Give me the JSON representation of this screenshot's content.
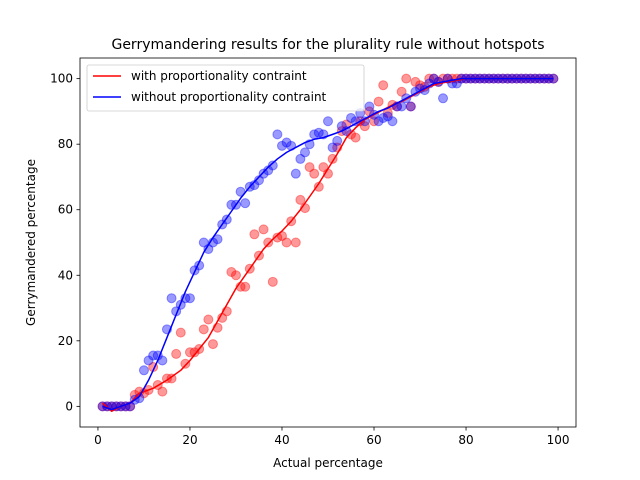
{
  "chart_data": {
    "type": "scatter",
    "title": "Gerrymandering results for the plurality rule without hotspots",
    "xlabel": "Actual percentage",
    "ylabel": "Gerrymandered percentage",
    "xlim": [
      -3.9,
      103.9
    ],
    "ylim": [
      -6.3,
      106.3
    ],
    "xticks": [
      0,
      20,
      40,
      60,
      80,
      100
    ],
    "yticks": [
      0,
      20,
      40,
      60,
      80,
      100
    ],
    "grid": false,
    "legend_position": "top-left",
    "series": [
      {
        "name": "with proportionality contraint",
        "color": "#ff0000",
        "points": [
          [
            1,
            0
          ],
          [
            2,
            0
          ],
          [
            3,
            0
          ],
          [
            4,
            0
          ],
          [
            5,
            0
          ],
          [
            6,
            0
          ],
          [
            7,
            0
          ],
          [
            8,
            3.5
          ],
          [
            9,
            4.5
          ],
          [
            10,
            4
          ],
          [
            11,
            5
          ],
          [
            12,
            12
          ],
          [
            13,
            6.5
          ],
          [
            14,
            4.5
          ],
          [
            15,
            8.5
          ],
          [
            16,
            8.5
          ],
          [
            17,
            16
          ],
          [
            18,
            22.5
          ],
          [
            19,
            13
          ],
          [
            20,
            16.5
          ],
          [
            21,
            16.5
          ],
          [
            22,
            17.5
          ],
          [
            23,
            23.5
          ],
          [
            24,
            26.5
          ],
          [
            25,
            19
          ],
          [
            26,
            24
          ],
          [
            27,
            27
          ],
          [
            28,
            29
          ],
          [
            29,
            41
          ],
          [
            30,
            40
          ],
          [
            31,
            36.5
          ],
          [
            32,
            36.5
          ],
          [
            33,
            42
          ],
          [
            34,
            52.5
          ],
          [
            35,
            46
          ],
          [
            36,
            54
          ],
          [
            37,
            50
          ],
          [
            38,
            38
          ],
          [
            39,
            51.5
          ],
          [
            40,
            52
          ],
          [
            41,
            50
          ],
          [
            42,
            56.5
          ],
          [
            43,
            50
          ],
          [
            44,
            63
          ],
          [
            45,
            60.5
          ],
          [
            46,
            73
          ],
          [
            47,
            71
          ],
          [
            48,
            67
          ],
          [
            49,
            73
          ],
          [
            50,
            71
          ],
          [
            51,
            75.5
          ],
          [
            52,
            79
          ],
          [
            53,
            84
          ],
          [
            54,
            86
          ],
          [
            55,
            83
          ],
          [
            56,
            82
          ],
          [
            57,
            87
          ],
          [
            58,
            85.5
          ],
          [
            59,
            90
          ],
          [
            60,
            87
          ],
          [
            61,
            93
          ],
          [
            62,
            98
          ],
          [
            63,
            89.5
          ],
          [
            64,
            92
          ],
          [
            65,
            91.5
          ],
          [
            66,
            96
          ],
          [
            67,
            100
          ],
          [
            68,
            91.5
          ],
          [
            69,
            99
          ],
          [
            70,
            98
          ],
          [
            71,
            97.5
          ],
          [
            72,
            100
          ],
          [
            73,
            100
          ],
          [
            74,
            99
          ],
          [
            75,
            100
          ],
          [
            76,
            100
          ],
          [
            77,
            100
          ],
          [
            78,
            100
          ],
          [
            79,
            100
          ],
          [
            80,
            100
          ],
          [
            81,
            100
          ],
          [
            82,
            100
          ],
          [
            83,
            100
          ],
          [
            84,
            100
          ],
          [
            85,
            100
          ],
          [
            86,
            100
          ],
          [
            87,
            100
          ],
          [
            88,
            100
          ],
          [
            89,
            100
          ],
          [
            90,
            100
          ],
          [
            91,
            100
          ],
          [
            92,
            100
          ],
          [
            93,
            100
          ],
          [
            94,
            100
          ],
          [
            95,
            100
          ],
          [
            96,
            100
          ],
          [
            97,
            100
          ],
          [
            98,
            100
          ],
          [
            99,
            100
          ]
        ],
        "fit": [
          [
            1,
            1
          ],
          [
            3,
            -1.5
          ],
          [
            5,
            0
          ],
          [
            7,
            1
          ],
          [
            9,
            4
          ],
          [
            12,
            5.5
          ],
          [
            15,
            8
          ],
          [
            18,
            11
          ],
          [
            20,
            14
          ],
          [
            22,
            17.5
          ],
          [
            24,
            21
          ],
          [
            26,
            26
          ],
          [
            28,
            31
          ],
          [
            30,
            36
          ],
          [
            32,
            40
          ],
          [
            34,
            44
          ],
          [
            36,
            48
          ],
          [
            38,
            51
          ],
          [
            40,
            53.5
          ],
          [
            42,
            56.5
          ],
          [
            44,
            60
          ],
          [
            46,
            64
          ],
          [
            48,
            68
          ],
          [
            50,
            72.5
          ],
          [
            52,
            77
          ],
          [
            54,
            82
          ],
          [
            56,
            85
          ],
          [
            58,
            87.5
          ],
          [
            60,
            89
          ],
          [
            62,
            90.5
          ],
          [
            64,
            92
          ],
          [
            66,
            93
          ],
          [
            68,
            94.5
          ],
          [
            70,
            96
          ],
          [
            72,
            97.5
          ],
          [
            74,
            98.5
          ],
          [
            76,
            99
          ],
          [
            78,
            99.5
          ],
          [
            80,
            100
          ],
          [
            90,
            100
          ],
          [
            99,
            100
          ]
        ]
      },
      {
        "name": "without proportionality contraint",
        "color": "#0000ff",
        "points": [
          [
            1,
            0
          ],
          [
            2,
            0
          ],
          [
            3,
            0
          ],
          [
            4,
            0
          ],
          [
            5,
            0
          ],
          [
            6,
            0
          ],
          [
            7,
            0
          ],
          [
            8,
            2
          ],
          [
            9,
            2.5
          ],
          [
            10,
            11
          ],
          [
            11,
            14
          ],
          [
            12,
            15.5
          ],
          [
            13,
            15.5
          ],
          [
            14,
            14
          ],
          [
            15,
            23.5
          ],
          [
            16,
            33
          ],
          [
            17,
            29
          ],
          [
            18,
            31
          ],
          [
            19,
            33
          ],
          [
            20,
            33
          ],
          [
            21,
            41.5
          ],
          [
            22,
            43
          ],
          [
            23,
            50
          ],
          [
            24,
            48
          ],
          [
            25,
            50
          ],
          [
            26,
            51
          ],
          [
            27,
            55.5
          ],
          [
            28,
            57
          ],
          [
            29,
            61.5
          ],
          [
            30,
            61.5
          ],
          [
            31,
            65.5
          ],
          [
            32,
            62
          ],
          [
            33,
            67
          ],
          [
            34,
            67.5
          ],
          [
            35,
            69
          ],
          [
            36,
            71
          ],
          [
            37,
            72
          ],
          [
            38,
            73.5
          ],
          [
            39,
            83
          ],
          [
            40,
            79.5
          ],
          [
            41,
            80.5
          ],
          [
            42,
            79.5
          ],
          [
            43,
            71
          ],
          [
            44,
            75.5
          ],
          [
            45,
            77.5
          ],
          [
            46,
            80
          ],
          [
            47,
            83
          ],
          [
            48,
            83.5
          ],
          [
            49,
            83
          ],
          [
            50,
            87
          ],
          [
            51,
            79
          ],
          [
            52,
            81
          ],
          [
            53,
            85.5
          ],
          [
            54,
            84
          ],
          [
            55,
            88
          ],
          [
            56,
            87
          ],
          [
            57,
            89.5
          ],
          [
            58,
            87
          ],
          [
            59,
            91.5
          ],
          [
            60,
            89
          ],
          [
            61,
            87
          ],
          [
            62,
            88
          ],
          [
            63,
            88.5
          ],
          [
            64,
            87
          ],
          [
            65,
            91.5
          ],
          [
            66,
            91.5
          ],
          [
            67,
            94
          ],
          [
            68,
            91.5
          ],
          [
            69,
            96
          ],
          [
            70,
            97
          ],
          [
            71,
            96.5
          ],
          [
            72,
            98.5
          ],
          [
            73,
            100
          ],
          [
            74,
            99
          ],
          [
            75,
            94
          ],
          [
            76,
            100
          ],
          [
            77,
            98.5
          ],
          [
            78,
            98.5
          ],
          [
            79,
            100
          ],
          [
            80,
            100
          ],
          [
            81,
            100
          ],
          [
            82,
            100
          ],
          [
            83,
            100
          ],
          [
            84,
            100
          ],
          [
            85,
            100
          ],
          [
            86,
            100
          ],
          [
            87,
            100
          ],
          [
            88,
            100
          ],
          [
            89,
            100
          ],
          [
            90,
            100
          ],
          [
            91,
            100
          ],
          [
            92,
            100
          ],
          [
            93,
            100
          ],
          [
            94,
            100
          ],
          [
            95,
            100
          ],
          [
            96,
            100
          ],
          [
            97,
            100
          ],
          [
            98,
            100
          ],
          [
            99,
            100
          ]
        ],
        "fit": [
          [
            1,
            0
          ],
          [
            3,
            -1
          ],
          [
            5,
            0
          ],
          [
            7,
            1
          ],
          [
            9,
            3
          ],
          [
            11,
            8
          ],
          [
            13,
            14
          ],
          [
            15,
            21
          ],
          [
            17,
            28
          ],
          [
            19,
            35
          ],
          [
            21,
            41
          ],
          [
            23,
            47
          ],
          [
            25,
            51.5
          ],
          [
            27,
            55.5
          ],
          [
            29,
            59.5
          ],
          [
            31,
            63.5
          ],
          [
            33,
            67
          ],
          [
            35,
            70
          ],
          [
            37,
            73
          ],
          [
            39,
            75.5
          ],
          [
            41,
            77.5
          ],
          [
            43,
            79
          ],
          [
            45,
            80.5
          ],
          [
            47,
            81.5
          ],
          [
            49,
            82
          ],
          [
            51,
            83
          ],
          [
            53,
            84
          ],
          [
            55,
            85.5
          ],
          [
            57,
            87
          ],
          [
            59,
            88.5
          ],
          [
            61,
            90
          ],
          [
            63,
            91
          ],
          [
            65,
            92.5
          ],
          [
            67,
            94
          ],
          [
            69,
            95.5
          ],
          [
            71,
            97
          ],
          [
            73,
            98.5
          ],
          [
            75,
            99
          ],
          [
            77,
            99.5
          ],
          [
            79,
            100
          ],
          [
            90,
            100
          ],
          [
            99,
            100
          ]
        ]
      }
    ]
  }
}
